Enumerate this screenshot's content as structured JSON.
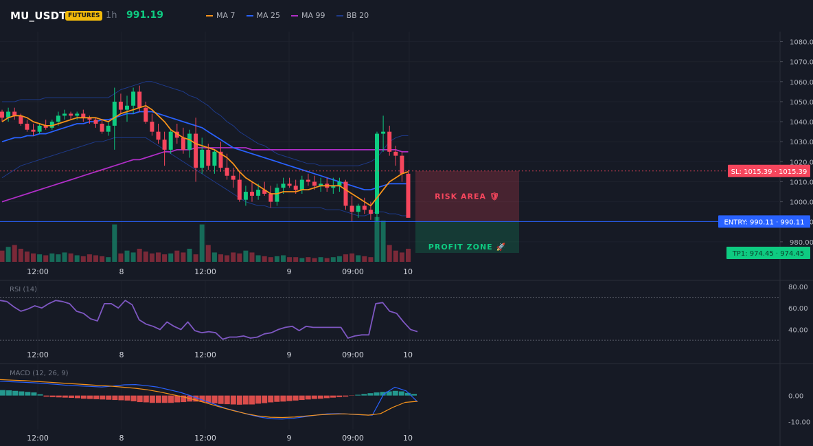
{
  "header": {
    "symbol": "MU_USDT",
    "badge": "FUTURES",
    "timeframe": "1h",
    "price": "991.19",
    "legend": [
      {
        "name": "MA 7",
        "color": "#f7931a"
      },
      {
        "name": "MA 25",
        "color": "#2962ff"
      },
      {
        "name": "MA 99",
        "color": "#b02ec7"
      },
      {
        "name": "BB 20",
        "color": "#1e3a8a"
      }
    ]
  },
  "colors": {
    "up": "#0ecb81",
    "down": "#f6465d",
    "background": "#161a25",
    "grid": "#1e222d"
  },
  "chart_data": [
    {
      "type": "candlestick",
      "title": "",
      "ylim": [
        970,
        1085
      ],
      "y_ticks": [
        "1080.00",
        "1070.00",
        "1060.00",
        "1050.00",
        "1040.00",
        "1030.00",
        "1020.00",
        "1010.00",
        "1000.00",
        "990.00",
        "980.00"
      ],
      "x_ticks": [
        "12:00",
        "8",
        "12:00",
        "9",
        "09:00",
        "10"
      ],
      "candles": [
        [
          1045,
          1046,
          1040,
          1042
        ],
        [
          1042,
          1047,
          1040,
          1045
        ],
        [
          1045,
          1047,
          1041,
          1043
        ],
        [
          1043,
          1044,
          1038,
          1039
        ],
        [
          1039,
          1041,
          1035,
          1036
        ],
        [
          1036,
          1039,
          1033,
          1035
        ],
        [
          1035,
          1039,
          1034,
          1038
        ],
        [
          1038,
          1041,
          1036,
          1037
        ],
        [
          1037,
          1041,
          1036,
          1040
        ],
        [
          1040,
          1045,
          1038,
          1043
        ],
        [
          1043,
          1046,
          1041,
          1044
        ],
        [
          1044,
          1045,
          1041,
          1043
        ],
        [
          1043,
          1045,
          1041,
          1044
        ],
        [
          1044,
          1046,
          1040,
          1042
        ],
        [
          1042,
          1043,
          1039,
          1041
        ],
        [
          1041,
          1042,
          1037,
          1039
        ],
        [
          1039,
          1041,
          1034,
          1035
        ],
        [
          1035,
          1040,
          1033,
          1038
        ],
        [
          1038,
          1057,
          1026,
          1050
        ],
        [
          1050,
          1054,
          1044,
          1046
        ],
        [
          1046,
          1053,
          1040,
          1048
        ],
        [
          1048,
          1057,
          1044,
          1055
        ],
        [
          1055,
          1058,
          1045,
          1047
        ],
        [
          1047,
          1050,
          1039,
          1040
        ],
        [
          1040,
          1044,
          1033,
          1035
        ],
        [
          1035,
          1039,
          1029,
          1031
        ],
        [
          1031,
          1035,
          1018,
          1026
        ],
        [
          1026,
          1036,
          1024,
          1035
        ],
        [
          1035,
          1039,
          1029,
          1032
        ],
        [
          1032,
          1037,
          1024,
          1026
        ],
        [
          1026,
          1036,
          1022,
          1034
        ],
        [
          1034,
          1042,
          1010,
          1017
        ],
        [
          1017,
          1032,
          1014,
          1026
        ],
        [
          1026,
          1029,
          1016,
          1018
        ],
        [
          1018,
          1026,
          1014,
          1025
        ],
        [
          1025,
          1030,
          1015,
          1017
        ],
        [
          1017,
          1024,
          1011,
          1013
        ],
        [
          1013,
          1017,
          1007,
          1011
        ],
        [
          1011,
          1015,
          1000,
          1001
        ],
        [
          1001,
          1008,
          998,
          1005
        ],
        [
          1005,
          1010,
          1000,
          1003
        ],
        [
          1003,
          1009,
          1001,
          1006
        ],
        [
          1006,
          1010,
          1003,
          1004
        ],
        [
          1004,
          1008,
          997,
          1000
        ],
        [
          1000,
          1009,
          998,
          1007
        ],
        [
          1007,
          1012,
          1004,
          1009
        ],
        [
          1009,
          1012,
          1007,
          1008
        ],
        [
          1008,
          1011,
          1004,
          1006
        ],
        [
          1006,
          1013,
          1004,
          1011
        ],
        [
          1011,
          1014,
          1008,
          1010
        ],
        [
          1010,
          1013,
          1006,
          1008
        ],
        [
          1008,
          1012,
          1005,
          1009
        ],
        [
          1009,
          1012,
          1005,
          1007
        ],
        [
          1007,
          1012,
          1004,
          1008
        ],
        [
          1008,
          1012,
          1005,
          1010
        ],
        [
          1010,
          1011,
          996,
          998
        ],
        [
          998,
          1003,
          990,
          995
        ],
        [
          995,
          999,
          992,
          998
        ],
        [
          998,
          1002,
          994,
          996
        ],
        [
          996,
          1000,
          991,
          994
        ],
        [
          994,
          1035,
          990,
          1034
        ],
        [
          1034,
          1043,
          1025,
          1035
        ],
        [
          1035,
          1038,
          1023,
          1025
        ],
        [
          1025,
          1028,
          1018,
          1023
        ],
        [
          1023,
          1025,
          1010,
          1014
        ],
        [
          1014,
          1016,
          998,
          999
        ]
      ],
      "ma7": [
        1040,
        1042,
        1043,
        1043,
        1042,
        1040,
        1039,
        1038,
        1038,
        1039,
        1040,
        1041,
        1042,
        1042,
        1042,
        1042,
        1041,
        1040,
        1042,
        1044,
        1045,
        1046,
        1047,
        1048,
        1046,
        1043,
        1040,
        1036,
        1034,
        1032,
        1031,
        1029,
        1028,
        1027,
        1026,
        1024,
        1022,
        1019,
        1015,
        1012,
        1010,
        1008,
        1006,
        1004,
        1004,
        1005,
        1005,
        1005,
        1006,
        1006,
        1007,
        1008,
        1008,
        1008,
        1008,
        1006,
        1004,
        1002,
        1000,
        998,
        1002,
        1006,
        1010,
        1012,
        1014,
        1015
      ],
      "ma25": [
        1030,
        1031,
        1032,
        1032,
        1033,
        1033,
        1034,
        1034,
        1035,
        1036,
        1037,
        1038,
        1039,
        1039,
        1040,
        1040,
        1041,
        1041,
        1042,
        1043,
        1044,
        1044,
        1045,
        1045,
        1045,
        1044,
        1043,
        1042,
        1041,
        1040,
        1039,
        1038,
        1037,
        1035,
        1033,
        1031,
        1029,
        1027,
        1026,
        1025,
        1024,
        1023,
        1022,
        1021,
        1020,
        1019,
        1018,
        1017,
        1016,
        1015,
        1014,
        1013,
        1012,
        1011,
        1010,
        1009,
        1008,
        1007,
        1006,
        1006,
        1007,
        1008,
        1009,
        1009,
        1009,
        1009
      ],
      "ma99": [
        1000,
        1001,
        1002,
        1003,
        1004,
        1005,
        1006,
        1007,
        1008,
        1009,
        1010,
        1011,
        1012,
        1013,
        1014,
        1015,
        1016,
        1017,
        1018,
        1019,
        1020,
        1021,
        1021,
        1022,
        1023,
        1024,
        1025,
        1025,
        1026,
        1026,
        1026,
        1027,
        1027,
        1027,
        1027,
        1027,
        1027,
        1027,
        1027,
        1027,
        1026,
        1026,
        1026,
        1026,
        1026,
        1026,
        1026,
        1026,
        1026,
        1026,
        1026,
        1026,
        1026,
        1026,
        1026,
        1026,
        1026,
        1026,
        1026,
        1026,
        1026,
        1026,
        1026,
        1026,
        1025,
        1025
      ],
      "bb_upper": [
        1050,
        1050,
        1050,
        1051,
        1051,
        1051,
        1051,
        1052,
        1052,
        1052,
        1052,
        1052,
        1052,
        1052,
        1052,
        1052,
        1052,
        1052,
        1054,
        1056,
        1057,
        1058,
        1059,
        1060,
        1060,
        1059,
        1058,
        1057,
        1056,
        1055,
        1053,
        1052,
        1050,
        1048,
        1045,
        1043,
        1040,
        1038,
        1035,
        1033,
        1031,
        1029,
        1028,
        1026,
        1024,
        1023,
        1022,
        1021,
        1020,
        1019,
        1019,
        1018,
        1018,
        1018,
        1018,
        1018,
        1018,
        1018,
        1019,
        1020,
        1022,
        1026,
        1030,
        1032,
        1033,
        1033
      ],
      "bb_lower": [
        1012,
        1014,
        1016,
        1018,
        1019,
        1020,
        1021,
        1022,
        1023,
        1024,
        1025,
        1026,
        1027,
        1028,
        1029,
        1030,
        1030,
        1031,
        1032,
        1032,
        1032,
        1032,
        1032,
        1032,
        1030,
        1028,
        1026,
        1024,
        1022,
        1020,
        1018,
        1016,
        1014,
        1012,
        1010,
        1008,
        1006,
        1004,
        1002,
        1000,
        999,
        998,
        998,
        997,
        997,
        997,
        997,
        997,
        997,
        997,
        997,
        997,
        996,
        996,
        996,
        995,
        994,
        993,
        993,
        994,
        995,
        995,
        994,
        994,
        993,
        993
      ],
      "volume": [
        12,
        16,
        18,
        14,
        11,
        9,
        8,
        7,
        9,
        8,
        10,
        9,
        7,
        6,
        8,
        7,
        6,
        5,
        40,
        9,
        12,
        10,
        14,
        11,
        9,
        10,
        8,
        9,
        12,
        10,
        14,
        8,
        40,
        18,
        10,
        8,
        7,
        10,
        9,
        12,
        10,
        7,
        6,
        5,
        6,
        7,
        5,
        5,
        4,
        5,
        4,
        5,
        4,
        5,
        6,
        8,
        9,
        7,
        6,
        5,
        48,
        44,
        18,
        12,
        10,
        14
      ],
      "levels": [
        {
          "label": "SL: 1015.39 · 1015.39",
          "price": 1015.39,
          "color": "#f6465d"
        },
        {
          "label": "ENTRY: 990.11 · 990.11",
          "price": 990.11,
          "color": "#2962ff"
        },
        {
          "label": "TP1: 974.45 · 974.45",
          "price": 974.45,
          "color": "#0ecb81"
        }
      ],
      "zones": [
        {
          "label": "RISK AREA 🛡",
          "top": 1015.39,
          "bottom": 990.11,
          "color": "#f6465d"
        },
        {
          "label": "PROFIT ZONE 🚀",
          "top": 990.11,
          "bottom": 974.45,
          "color": "#0ecb81"
        }
      ]
    },
    {
      "type": "line",
      "title": "RSI (14)",
      "ylim": [
        25,
        85
      ],
      "y_ticks": [
        "80.00",
        "60.00",
        "40.00"
      ],
      "levels": [
        70,
        30
      ],
      "x_ticks": [
        "12:00",
        "8",
        "12:00",
        "9",
        "09:00",
        "10"
      ],
      "values": [
        67,
        66,
        61,
        57,
        59,
        62,
        60,
        64,
        67,
        66,
        64,
        57,
        55,
        50,
        48,
        64,
        64,
        60,
        67,
        63,
        49,
        45,
        43,
        40,
        47,
        43,
        40,
        47,
        39,
        37,
        38,
        37,
        31,
        33,
        33,
        34,
        32,
        33,
        36,
        37,
        40,
        42,
        43,
        39,
        43,
        42,
        42,
        42,
        42,
        42,
        32,
        34,
        35,
        35,
        64,
        65,
        57,
        55,
        47,
        40,
        38
      ]
    },
    {
      "type": "bar+line",
      "title": "MACD (12, 26, 9)",
      "ylim": [
        -13,
        12
      ],
      "y_ticks": [
        "0.00",
        "-10.00"
      ],
      "x_ticks": [
        "12:00",
        "8",
        "12:00",
        "9",
        "09:00",
        "10"
      ],
      "histogram": [
        2.1,
        2.0,
        1.8,
        1.6,
        1.4,
        1.2,
        0.5,
        -0.4,
        -0.6,
        -0.7,
        -0.8,
        -0.9,
        -1.0,
        -1.2,
        -1.3,
        -1.4,
        -1.5,
        -1.6,
        -1.7,
        -1.8,
        -1.9,
        -2.2,
        -2.5,
        -2.6,
        -2.8,
        -2.8,
        -2.8,
        -2.8,
        -2.6,
        -2.5,
        -2.3,
        -2.3,
        -2.4,
        -2.8,
        -3.0,
        -3.2,
        -3.3,
        -3.4,
        -3.5,
        -3.4,
        -3.4,
        -3.1,
        -2.9,
        -2.6,
        -2.4,
        -2.3,
        -2.1,
        -1.9,
        -1.7,
        -1.5,
        -1.3,
        -1.2,
        -1.0,
        -0.8,
        -0.6,
        -0.4,
        -0.1,
        0.3,
        0.6,
        0.9,
        1.2,
        1.4,
        1.6,
        1.8,
        1.6,
        1.0,
        0.6
      ],
      "macd": [
        5.5,
        5.3,
        5.1,
        4.9,
        4.6,
        4.3,
        3.9,
        3.7,
        3.5,
        3.3,
        3.6,
        4.1,
        4.2,
        3.8,
        3.2,
        2.2,
        1.2,
        -0.2,
        -1.8,
        -3.3,
        -4.9,
        -6.0,
        -7.2,
        -8.2,
        -8.9,
        -9.0,
        -8.7,
        -8.1,
        -7.5,
        -7.0,
        -6.9,
        -7.1,
        -7.4,
        -7.5,
        0.5,
        3.2,
        1.8,
        -2.4
      ],
      "signal": [
        6.1,
        5.9,
        5.7,
        5.4,
        5.1,
        4.8,
        4.5,
        4.2,
        3.9,
        3.6,
        3.2,
        2.8,
        2.2,
        1.4,
        0.4,
        -0.6,
        -1.8,
        -3.1,
        -4.5,
        -5.8,
        -6.9,
        -7.8,
        -8.3,
        -8.4,
        -8.2,
        -7.8,
        -7.4,
        -7.1,
        -7.0,
        -7.2,
        -7.5,
        -6.9,
        -4.5,
        -2.6,
        -2.2
      ]
    }
  ]
}
